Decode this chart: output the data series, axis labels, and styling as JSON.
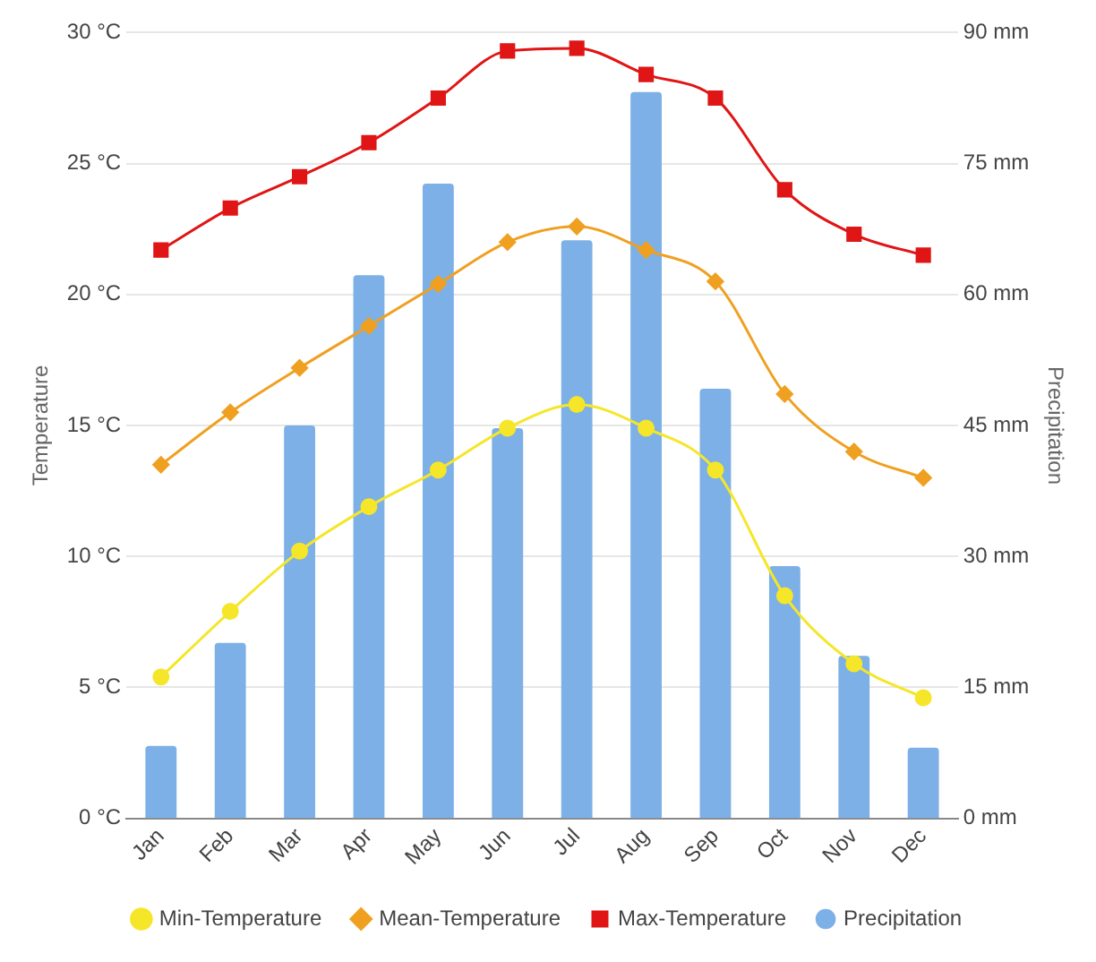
{
  "chart_data": {
    "type": "line",
    "ylabel": "Temperature",
    "y2label": "Precipitation",
    "categories": [
      "Jan",
      "Feb",
      "Mar",
      "Apr",
      "May",
      "Jun",
      "Jul",
      "Aug",
      "Sep",
      "Oct",
      "Nov",
      "Dec"
    ],
    "series": [
      {
        "name": "Min-Temperature",
        "color": "#f5e62a",
        "marker": "circle",
        "values": [
          5.4,
          7.9,
          10.2,
          11.9,
          13.3,
          14.9,
          15.8,
          14.9,
          13.3,
          8.5,
          5.9,
          4.6
        ]
      },
      {
        "name": "Mean-Temperature",
        "color": "#f0a020",
        "marker": "diamond",
        "values": [
          13.5,
          15.5,
          17.2,
          18.8,
          20.4,
          22.0,
          22.6,
          21.7,
          20.5,
          16.2,
          14.0,
          13.0
        ]
      },
      {
        "name": "Max-Temperature",
        "color": "#e01515",
        "marker": "square",
        "values": [
          21.7,
          23.3,
          24.5,
          25.8,
          27.5,
          29.3,
          29.4,
          28.4,
          27.5,
          24.0,
          22.3,
          21.5
        ]
      },
      {
        "name": "Precipitation",
        "type": "bar",
        "axis": "y2",
        "color": "#7cb0e6",
        "values": [
          8.3,
          20.1,
          45,
          62.2,
          72.7,
          44.7,
          66.2,
          83.2,
          49.2,
          28.9,
          18.6,
          8.1
        ]
      }
    ],
    "ylim": [
      0,
      30
    ],
    "yticks": [
      {
        "value": 0,
        "label": "0 °C"
      },
      {
        "value": 5,
        "label": "5 °C"
      },
      {
        "value": 10,
        "label": "10 °C"
      },
      {
        "value": 15,
        "label": "15 °C"
      },
      {
        "value": 20,
        "label": "20 °C"
      },
      {
        "value": 25,
        "label": "25 °C"
      },
      {
        "value": 30,
        "label": "30 °C"
      }
    ],
    "y2lim": [
      0,
      90
    ],
    "y2ticks": [
      {
        "value": 0,
        "label": "0 mm"
      },
      {
        "value": 15,
        "label": "15 mm"
      },
      {
        "value": 30,
        "label": "30 mm"
      },
      {
        "value": 45,
        "label": "45 mm"
      },
      {
        "value": 60,
        "label": "60 mm"
      },
      {
        "value": 75,
        "label": "75 mm"
      },
      {
        "value": 90,
        "label": "90 mm"
      }
    ],
    "grid": "y",
    "legend": "bottom"
  }
}
